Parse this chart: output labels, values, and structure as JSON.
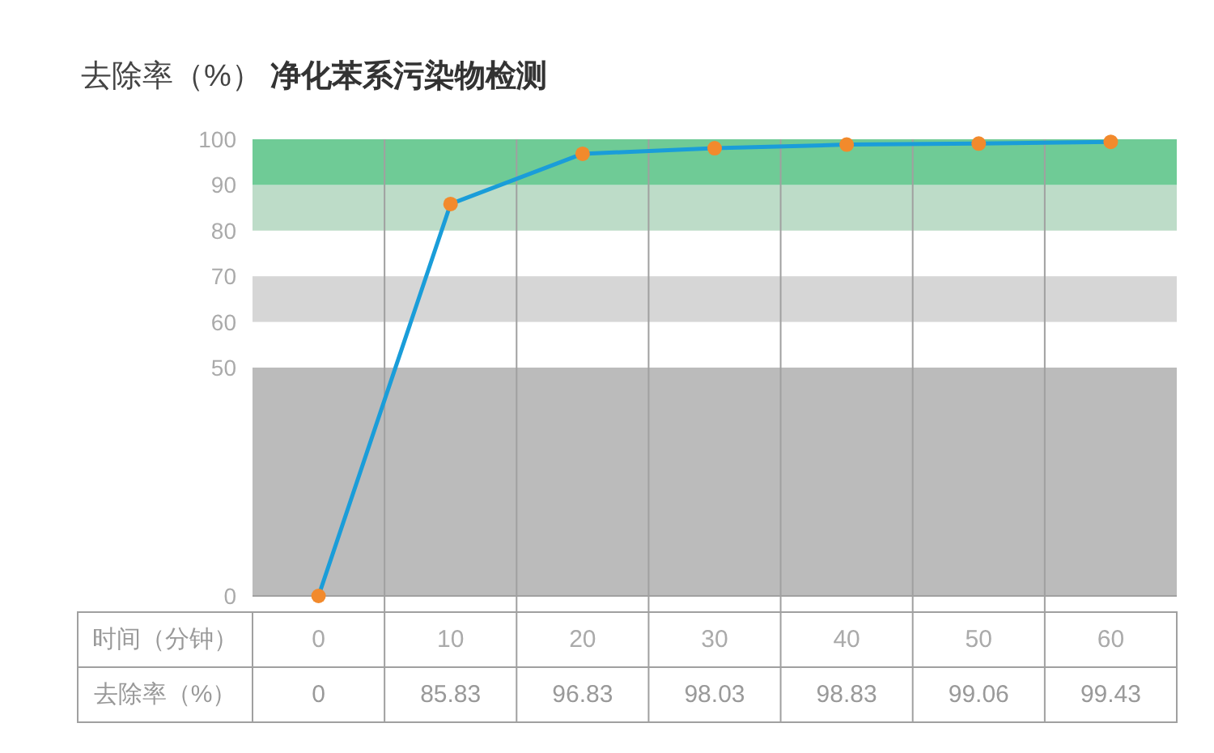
{
  "chart_data": {
    "type": "line",
    "title": "去除率（%） **净化苯系污染物检测**",
    "xlabel": "时间（分钟）",
    "ylabel": "去除率（%）",
    "categories": [
      "0",
      "10",
      "20",
      "30",
      "40",
      "50",
      "60"
    ],
    "values": [
      0,
      85.83,
      96.83,
      98.03,
      98.83,
      99.06,
      99.43
    ],
    "color": "#1a9dd9",
    "colors": [
      "#f28a2c",
      "#f28a2c",
      "#f28a2c",
      "#f28a2c",
      "#f28a2c",
      "#f28a2c",
      "#f28a2c"
    ],
    "ylim": [
      0,
      100
    ],
    "yticks": [
      0,
      50,
      60,
      70,
      80,
      90,
      100
    ],
    "bands": [
      {
        "axis": "y",
        "from": 0,
        "to": 50,
        "color": "#bbbbbb"
      },
      {
        "axis": "y",
        "from": 60,
        "to": 70,
        "color": "#d6d6d6"
      },
      {
        "axis": "y",
        "from": 80,
        "to": 90,
        "color": "#bddcc8"
      },
      {
        "axis": "y",
        "from": 90,
        "to": 100,
        "color": "#6fcb96"
      }
    ],
    "grid": "x",
    "marker": "circle",
    "data_labels": true
  }
}
